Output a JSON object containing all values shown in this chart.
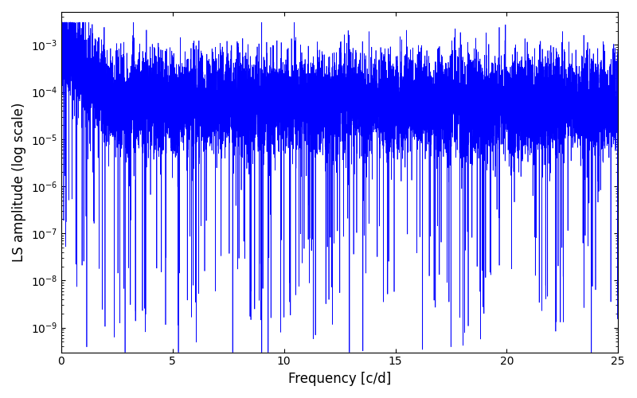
{
  "title": "",
  "xlabel": "Frequency [c/d]",
  "ylabel": "LS amplitude (log scale)",
  "xlim": [
    0,
    25
  ],
  "ylim_log": [
    3e-10,
    0.005
  ],
  "line_color": "#0000ff",
  "line_width": 0.5,
  "figsize": [
    8.0,
    5.0
  ],
  "dpi": 100,
  "background_color": "#ffffff",
  "num_points": 10000,
  "freq_max": 25.0,
  "seed": 12345,
  "yticks": [
    1e-09,
    1e-08,
    1e-07,
    1e-06,
    1e-05,
    0.0001,
    0.001
  ],
  "xticks": [
    0,
    5,
    10,
    15,
    20,
    25
  ]
}
